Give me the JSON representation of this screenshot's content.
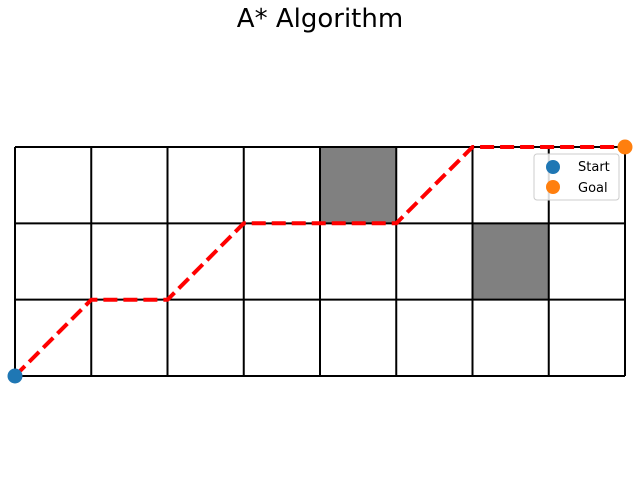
{
  "chart_data": {
    "type": "grid-path",
    "title": "A* Algorithm",
    "grid": {
      "cols": 8,
      "rows": 3
    },
    "xlim": [
      0,
      8
    ],
    "ylim": [
      0,
      3
    ],
    "obstacles": [
      {
        "x": 4,
        "y": 2
      },
      {
        "x": 6,
        "y": 1
      }
    ],
    "path": {
      "color": "#ff0000",
      "style": "dashed",
      "points": [
        [
          0,
          0
        ],
        [
          1,
          1
        ],
        [
          2,
          1
        ],
        [
          3,
          2
        ],
        [
          4,
          2
        ],
        [
          5,
          2
        ],
        [
          6,
          3
        ],
        [
          7,
          3
        ],
        [
          8,
          3
        ]
      ]
    },
    "start": {
      "x": 0,
      "y": 0,
      "label": "Start",
      "color": "#1f77b4"
    },
    "goal": {
      "x": 8,
      "y": 3,
      "label": "Goal",
      "color": "#ff7f0e"
    },
    "obstacle_color": "#808080",
    "legend": {
      "position": "top-right",
      "entries": [
        "Start",
        "Goal"
      ]
    }
  }
}
